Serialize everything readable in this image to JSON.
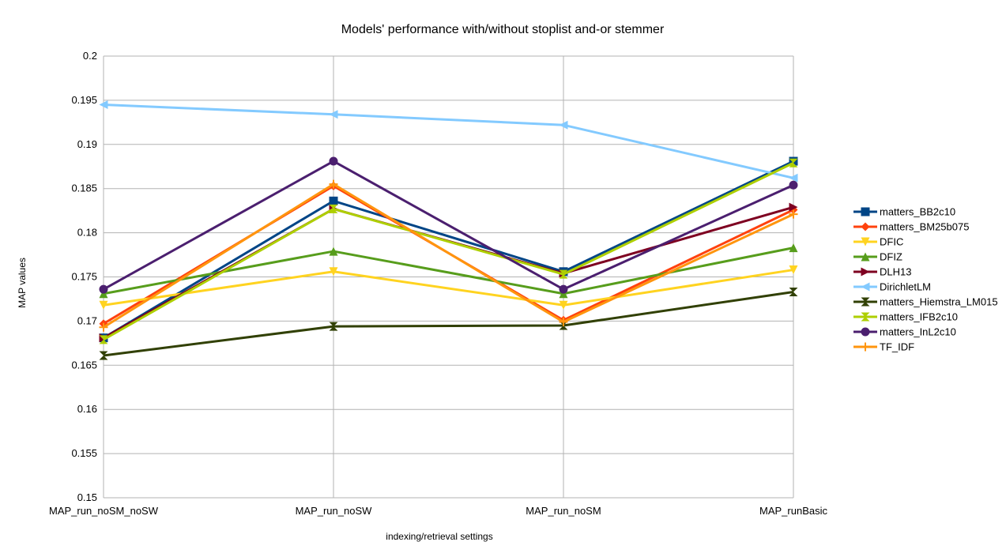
{
  "chart_data": {
    "type": "line",
    "title": "Models' performance with/without stoplist and-or stemmer",
    "xlabel": "indexing/retrieval settings",
    "ylabel": "MAP values",
    "categories": [
      "MAP_run_noSM_noSW",
      "MAP_run_noSW",
      "MAP_run_noSM",
      "MAP_runBasic"
    ],
    "ylim": [
      0.15,
      0.2
    ],
    "yticks": [
      0.15,
      0.155,
      0.16,
      0.165,
      0.17,
      0.175,
      0.18,
      0.185,
      0.19,
      0.195,
      0.2
    ],
    "ytick_labels": [
      "0.15",
      "0.155",
      "0.16",
      "0.165",
      "0.17",
      "0.175",
      "0.18",
      "0.185",
      "0.19",
      "0.195",
      "0.2"
    ],
    "grid": true,
    "legend_position": "right",
    "series": [
      {
        "name": "matters_BB2c10",
        "color": "#004586",
        "marker": "square",
        "values": [
          0.1681,
          0.1836,
          0.1756,
          0.1881
        ]
      },
      {
        "name": "matters_BM25b075",
        "color": "#ff420e",
        "marker": "diamond",
        "values": [
          0.1697,
          0.1853,
          0.1701,
          0.1826
        ]
      },
      {
        "name": "DFIC",
        "color": "#ffd320",
        "marker": "triangle-down",
        "values": [
          0.1718,
          0.1756,
          0.1718,
          0.1758
        ]
      },
      {
        "name": "DFIZ",
        "color": "#579d1c",
        "marker": "triangle-up",
        "values": [
          0.1731,
          0.1779,
          0.1731,
          0.1783
        ]
      },
      {
        "name": "DLH13",
        "color": "#7e0021",
        "marker": "triangle-right",
        "values": [
          0.1681,
          0.1827,
          0.1754,
          0.1829
        ]
      },
      {
        "name": "DirichletLM",
        "color": "#83caff",
        "marker": "triangle-left",
        "values": [
          0.1945,
          0.1934,
          0.1922,
          0.1862
        ]
      },
      {
        "name": "matters_Hiemstra_LM015",
        "color": "#314004",
        "marker": "bowtie",
        "values": [
          0.1661,
          0.1694,
          0.1695,
          0.1733
        ]
      },
      {
        "name": "matters_IFB2c10",
        "color": "#aecf00",
        "marker": "hourglass",
        "values": [
          0.1679,
          0.1827,
          0.1753,
          0.1879
        ]
      },
      {
        "name": "matters_InL2c10",
        "color": "#4b1f6f",
        "marker": "circle",
        "values": [
          0.1736,
          0.1881,
          0.1736,
          0.1854
        ]
      },
      {
        "name": "TF_IDF",
        "color": "#ff950e",
        "marker": "plus",
        "values": [
          0.1693,
          0.1855,
          0.1699,
          0.1821
        ]
      }
    ]
  }
}
